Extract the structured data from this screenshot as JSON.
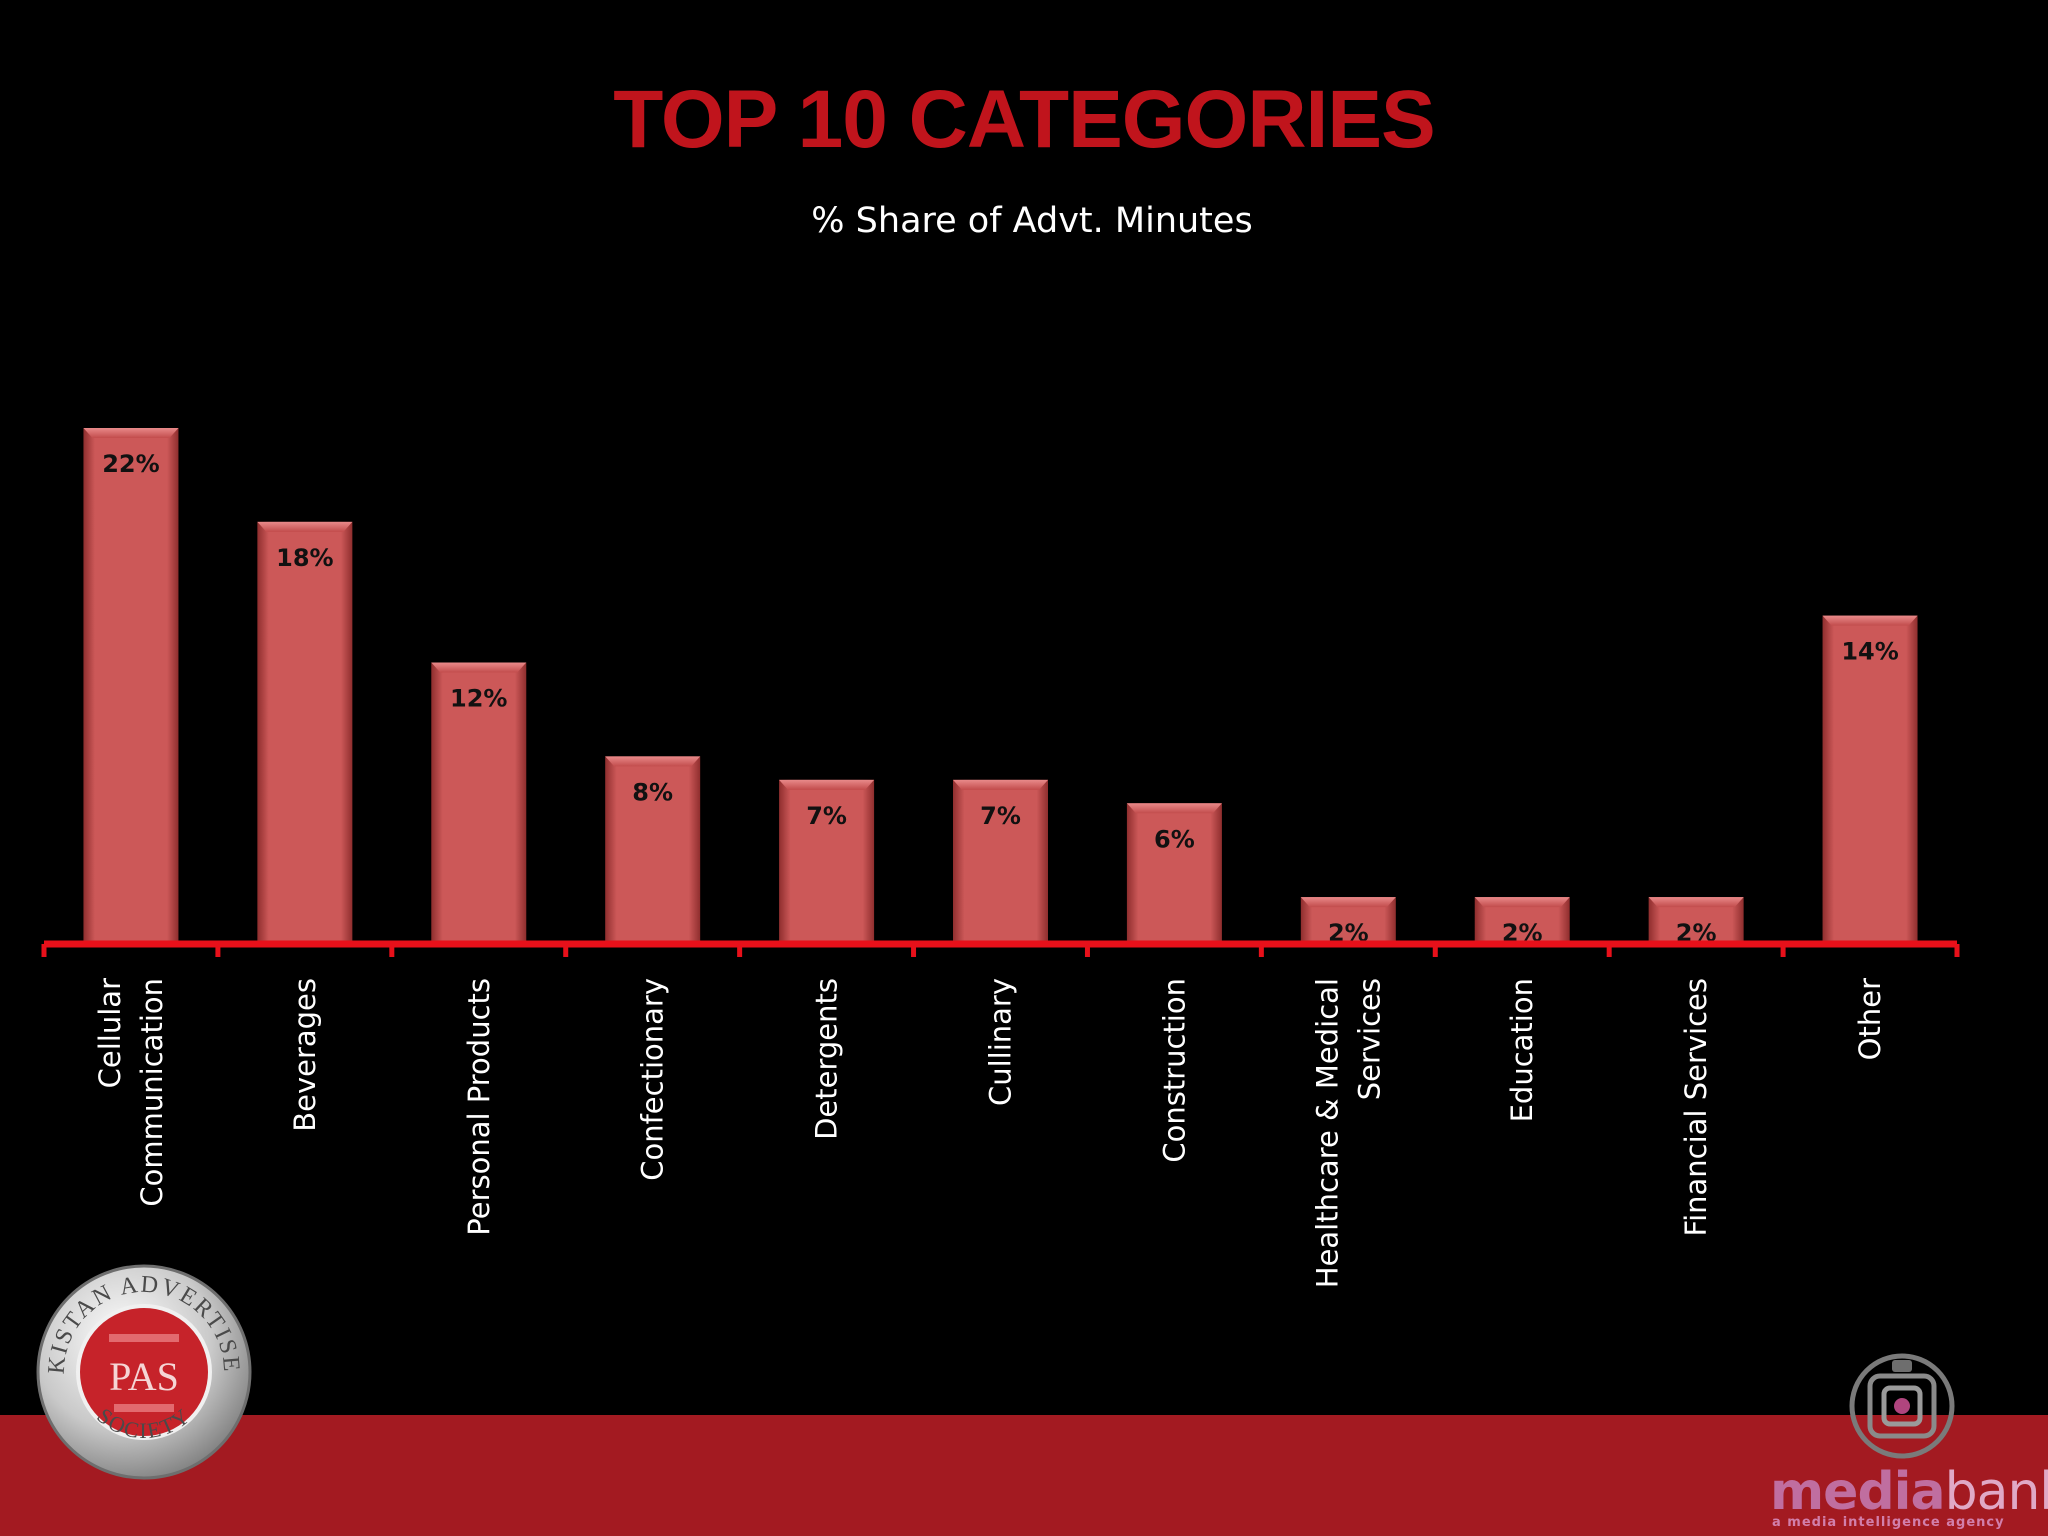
{
  "chart_data": {
    "type": "bar",
    "title": "TOP 10 CATEGORIES",
    "subtitle": "% Share of Advt. Minutes",
    "categories": [
      [
        "Cellular",
        "Communication"
      ],
      [
        "Beverages"
      ],
      [
        "Personal Products"
      ],
      [
        "Confectionary"
      ],
      [
        "Detergents"
      ],
      [
        "Cullinary"
      ],
      [
        "Construction"
      ],
      [
        "Healthcare & Medical",
        "Services"
      ],
      [
        "Education"
      ],
      [
        "Financial Services"
      ],
      [
        "Other"
      ]
    ],
    "values": [
      22,
      18,
      12,
      8,
      7,
      7,
      6,
      2,
      2,
      2,
      14
    ],
    "data_labels": [
      "22%",
      "18%",
      "12%",
      "8%",
      "7%",
      "7%",
      "6%",
      "2%",
      "2%",
      "2%",
      "14%"
    ],
    "ylim": [
      0,
      22
    ],
    "grid": false,
    "legend": "none",
    "colors": {
      "bar": "#c95454",
      "axis": "#e8101a",
      "title": "#c0141c",
      "label": "#ffffff",
      "value_label": "#111111"
    }
  },
  "branding": {
    "pas_logo": {
      "icon": "pas-seal-logo",
      "ring_text": "PAKISTAN ADVERTISERS",
      "bottom_text": "SOCIETY",
      "center_text": "PAS"
    },
    "mediabank_logo": {
      "icon": "mediabank-logo",
      "word_a": "media",
      "word_b": "bank",
      "tagline": "a media intelligence agency"
    },
    "footer_color": "#a31a21"
  }
}
